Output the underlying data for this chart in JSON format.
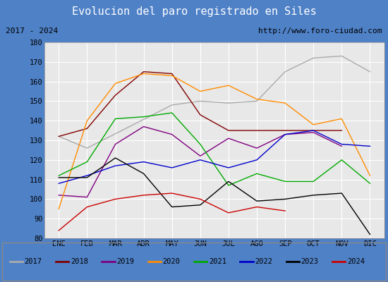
{
  "title": "Evolucion del paro registrado en Siles",
  "subtitle_left": "2017 - 2024",
  "subtitle_right": "http://www.foro-ciudad.com",
  "months": [
    "ENE",
    "FEB",
    "MAR",
    "ABR",
    "MAY",
    "JUN",
    "JUL",
    "AGO",
    "SEP",
    "OCT",
    "NOV",
    "DIC"
  ],
  "ylim": [
    80,
    180
  ],
  "yticks": [
    80,
    90,
    100,
    110,
    120,
    130,
    140,
    150,
    160,
    170,
    180
  ],
  "series": {
    "2017": {
      "color": "#aaaaaa",
      "data": [
        132,
        126,
        null,
        null,
        148,
        150,
        149,
        150,
        165,
        172,
        173,
        165
      ]
    },
    "2018": {
      "color": "#800000",
      "data": [
        132,
        136,
        153,
        165,
        164,
        143,
        135,
        135,
        135,
        135,
        135,
        null
      ]
    },
    "2019": {
      "color": "#800080",
      "data": [
        102,
        101,
        128,
        137,
        133,
        122,
        131,
        126,
        133,
        134,
        127,
        null
      ]
    },
    "2020": {
      "color": "#ff8c00",
      "data": [
        95,
        140,
        159,
        164,
        163,
        155,
        158,
        151,
        149,
        138,
        141,
        112
      ]
    },
    "2021": {
      "color": "#00aa00",
      "data": [
        112,
        119,
        141,
        142,
        144,
        128,
        107,
        113,
        109,
        109,
        120,
        108
      ]
    },
    "2022": {
      "color": "#0000cc",
      "data": [
        108,
        112,
        117,
        119,
        116,
        120,
        116,
        120,
        133,
        135,
        128,
        127
      ]
    },
    "2023": {
      "color": "#000000",
      "data": [
        111,
        111,
        121,
        113,
        96,
        97,
        109,
        99,
        100,
        102,
        103,
        82
      ]
    },
    "2024": {
      "color": "#cc0000",
      "data": [
        84,
        96,
        100,
        102,
        103,
        100,
        93,
        96,
        94,
        null,
        null,
        null
      ]
    }
  },
  "title_bg_color": "#4f81c7",
  "title_text_color": "#ffffff",
  "subtitle_bg_color": "#dcdcdc",
  "plot_bg_color": "#e8e8e8",
  "grid_color": "#ffffff",
  "border_color": "#4f81c7",
  "title_fontsize": 11,
  "subtitle_fontsize": 8,
  "tick_fontsize": 7.5,
  "legend_fontsize": 7.5
}
